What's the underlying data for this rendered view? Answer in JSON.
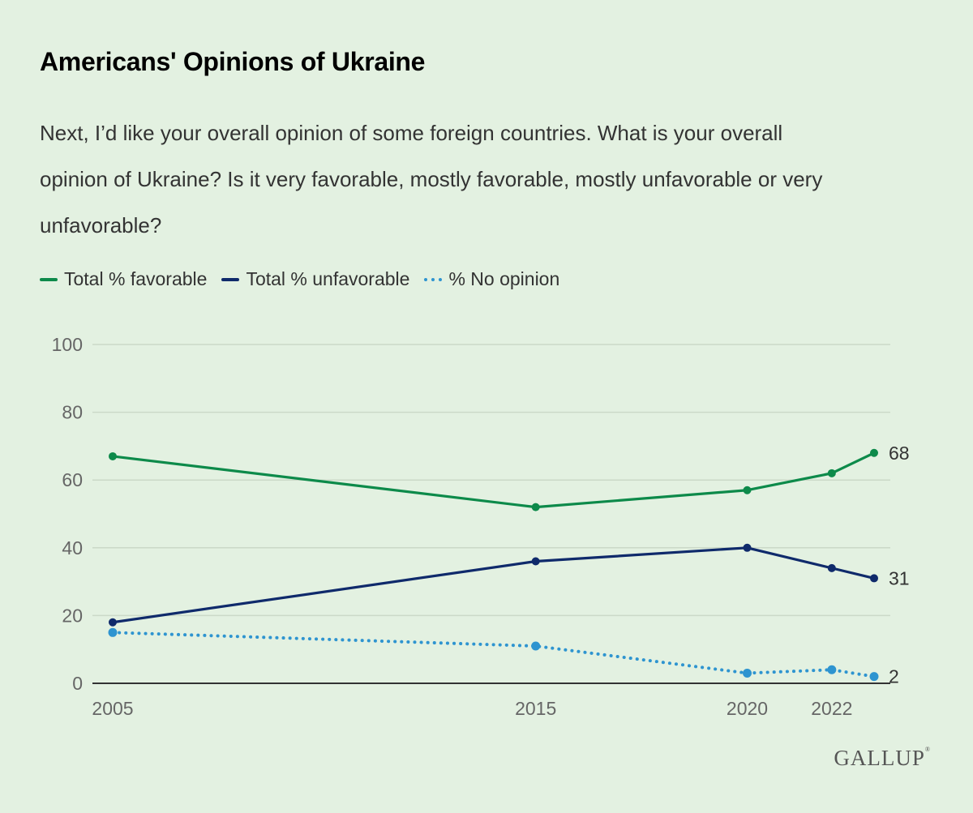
{
  "header": {
    "title": "Americans' Opinions of Ukraine",
    "subtitle": "Next, I’d like your overall opinion of some foreign countries. What is your overall opinion of Ukraine? Is it very favorable, mostly favorable, mostly unfavorable or very unfavorable?"
  },
  "legend": [
    {
      "label": "Total % favorable",
      "color": "#0d8a4a",
      "style": "solid"
    },
    {
      "label": "Total % unfavorable",
      "color": "#0f2a6b",
      "style": "solid"
    },
    {
      "label": "% No opinion",
      "color": "#2e94d0",
      "style": "dotted"
    }
  ],
  "logo": {
    "text": "GALLUP",
    "mark": "®"
  },
  "chart_data": {
    "type": "line",
    "title": "Americans' Opinions of Ukraine",
    "xlabel": "",
    "ylabel": "",
    "x": [
      2005,
      2015,
      2020,
      2022,
      2023
    ],
    "xticks": [
      "2005",
      "2015",
      "2020",
      "2022"
    ],
    "xlim": [
      2005,
      2023
    ],
    "ylim": [
      0,
      100
    ],
    "yticks": [
      0,
      20,
      40,
      60,
      80,
      100
    ],
    "grid": true,
    "legend_position": "top-left",
    "series": [
      {
        "name": "Total % favorable",
        "color": "#0d8a4a",
        "style": "solid",
        "values": [
          67,
          52,
          57,
          62,
          68
        ],
        "end_label": "68"
      },
      {
        "name": "Total % unfavorable",
        "color": "#0f2a6b",
        "style": "solid",
        "values": [
          18,
          36,
          40,
          34,
          31
        ],
        "end_label": "31"
      },
      {
        "name": "% No opinion",
        "color": "#2e94d0",
        "style": "dotted",
        "values": [
          15,
          11,
          3,
          4,
          2
        ],
        "end_label": "2"
      }
    ]
  }
}
